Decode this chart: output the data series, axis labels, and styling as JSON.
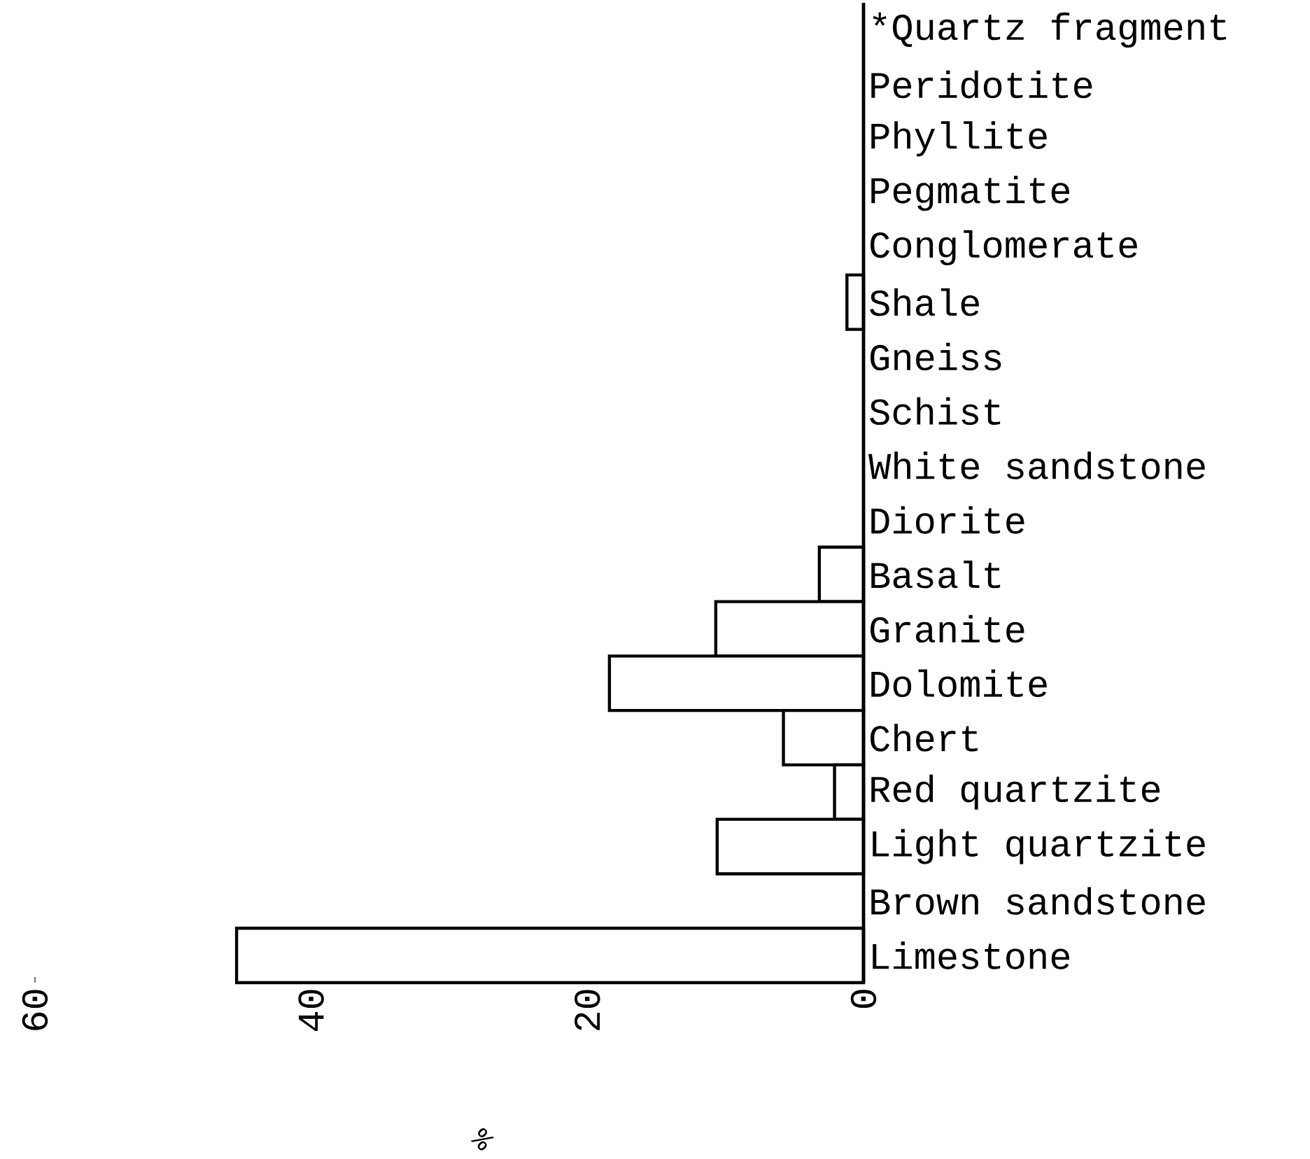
{
  "chart_data": {
    "type": "bar",
    "orientation": "horizontal",
    "xlabel": "%",
    "categories": [
      "*Quartz fragment",
      "Peridotite",
      "Phyllite",
      "Pegmatite",
      "Conglomerate",
      "Shale",
      "Gneiss",
      "Schist",
      "White sandstone",
      "Diorite",
      "Basalt",
      "Granite",
      "Dolomite",
      "Chert",
      "Red quartzite",
      "Light quartzite",
      "Brown sandstone",
      "Limestone"
    ],
    "values": [
      0,
      0,
      0,
      0,
      0,
      1.2,
      0,
      0,
      0,
      0,
      3.2,
      10.7,
      18.4,
      5.8,
      2.1,
      10.6,
      0,
      45.4
    ],
    "color": "#ffffff",
    "xlim": [
      60,
      0
    ],
    "xticks": [
      60,
      40,
      20,
      0
    ],
    "grid": false
  }
}
